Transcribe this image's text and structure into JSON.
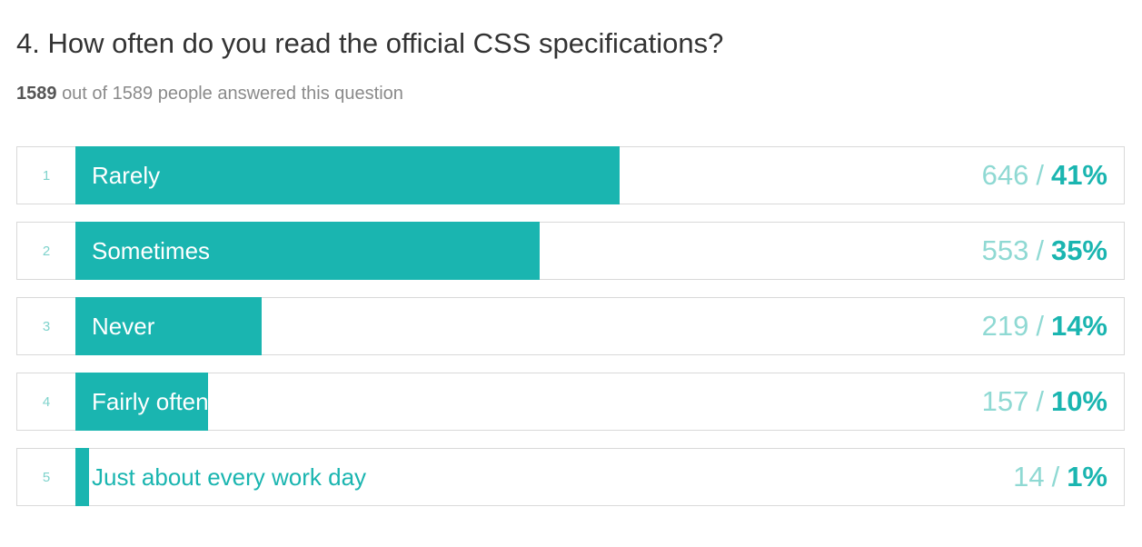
{
  "question": {
    "title": "4. How often do you read the official CSS specifications?",
    "answered_count": "1589",
    "answered_suffix": "out of 1589 people answered this question"
  },
  "colors": {
    "accent": "#1ab5b0",
    "count_text": "#8fd9d3",
    "row_border": "#d9d9d9"
  },
  "chart_data": {
    "type": "bar",
    "orientation": "horizontal",
    "title": "4. How often do you read the official CSS specifications?",
    "total": 1589,
    "categories": [
      "Rarely",
      "Sometimes",
      "Never",
      "Fairly often",
      "Just about every work day"
    ],
    "ranks": [
      "1",
      "2",
      "3",
      "4",
      "5"
    ],
    "counts": [
      646,
      553,
      219,
      157,
      14
    ],
    "percent_labels": [
      "41%",
      "35%",
      "14%",
      "10%",
      "1%"
    ],
    "values": [
      41,
      35,
      14,
      10,
      1
    ]
  }
}
